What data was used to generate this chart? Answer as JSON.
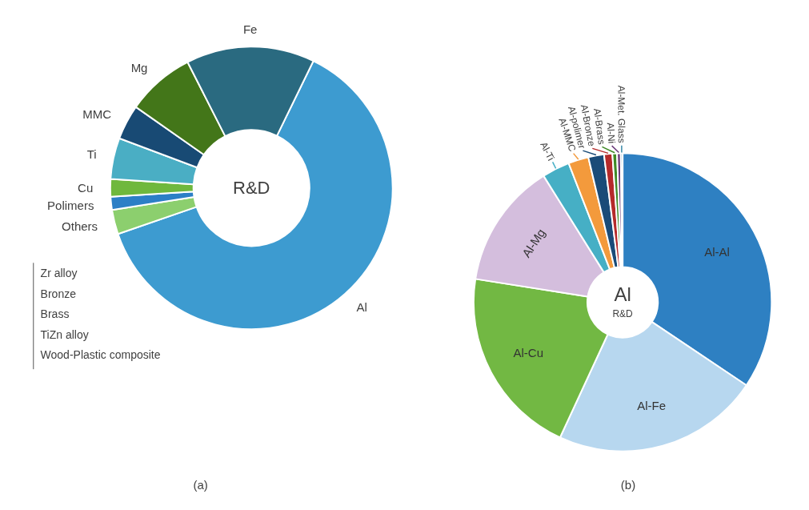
{
  "chart_data": [
    {
      "type": "donut",
      "categories": [
        "Al",
        "Others",
        "Polimers",
        "Cu",
        "Ti",
        "MMC",
        "Mg",
        "Fe"
      ],
      "values": [
        62.5,
        2.8,
        1.5,
        2,
        4.7,
        4,
        7.8,
        14.7
      ],
      "colors": [
        "#3d9bd0",
        "#8ccf6e",
        "#2c7fc6",
        "#6fb83d",
        "#4aaec4",
        "#184a74",
        "#437619",
        "#2a6a80"
      ],
      "annotations": [
        "R&D",
        "Zr alloy",
        "Bronze",
        "Brass",
        "TiZn alloy",
        "Wood-Plastic composite",
        "(a)"
      ]
    },
    {
      "type": "donut",
      "categories": [
        "Al-Al",
        "Al-Fe",
        "Al-Cu",
        "Al-Mg",
        "Al-Ti",
        "Al-MMC",
        "Al-polimer",
        "Al-Bronze",
        "Al-Brass",
        "Al-Ni",
        "Al-Met. Glass"
      ],
      "values": [
        34.4,
        22.5,
        20.6,
        13.6,
        3,
        2.2,
        1.7,
        0.9,
        0.5,
        0.4,
        0.2
      ],
      "colors": [
        "#2e80c2",
        "#b7d7ef",
        "#72b843",
        "#d4bedd",
        "#46afc5",
        "#f39a3c",
        "#1a4b78",
        "#b52a2a",
        "#3f8a26",
        "#6a3a7a",
        "#3a8aa8"
      ],
      "annotations": [
        "Al",
        "R&D",
        "(b)"
      ]
    }
  ]
}
